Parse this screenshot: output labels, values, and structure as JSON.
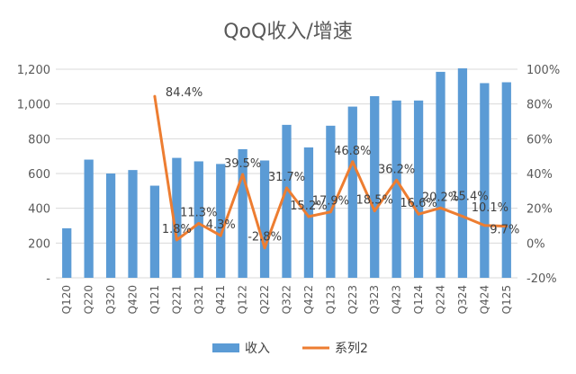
{
  "chart_data": {
    "type": "bar",
    "title": "QoQ收入/增速",
    "categories": [
      "Q120",
      "Q220",
      "Q320",
      "Q420",
      "Q121",
      "Q221",
      "Q321",
      "Q421",
      "Q122",
      "Q222",
      "Q322",
      "Q422",
      "Q123",
      "Q223",
      "Q323",
      "Q423",
      "Q124",
      "Q224",
      "Q324",
      "Q424",
      "Q125"
    ],
    "series": [
      {
        "name": "收入",
        "type": "bar",
        "axis": "left",
        "color": "#5b9bd5",
        "values": [
          285,
          680,
          600,
          620,
          530,
          690,
          670,
          655,
          740,
          675,
          880,
          750,
          875,
          985,
          1045,
          1020,
          1020,
          1185,
          1205,
          1120,
          1125
        ]
      },
      {
        "name": "系列2",
        "type": "line",
        "axis": "right",
        "color": "#ed7d31",
        "values": [
          null,
          null,
          null,
          null,
          84.4,
          1.8,
          11.3,
          4.3,
          39.5,
          -2.8,
          31.7,
          15.2,
          17.9,
          46.8,
          18.5,
          36.2,
          16.6,
          20.2,
          15.4,
          10.1,
          9.7
        ],
        "labels": [
          "",
          "",
          "",
          "",
          "84.4%",
          "1.8%",
          "11.3%",
          "4.3%",
          "39.5%",
          "-2.8%",
          "31.7%",
          "15.2%",
          "17.9%",
          "46.8%",
          "18.5%",
          "36.2%",
          "16.6%",
          "20.2%",
          "15.4%",
          "10.1%",
          "9.7%"
        ]
      }
    ],
    "y_left": {
      "min": 0,
      "max": 1200,
      "step": 200,
      "tick_labels": [
        "-",
        "200",
        "400",
        "600",
        "800",
        "1,000",
        "1,200"
      ]
    },
    "y_right": {
      "min": -20,
      "max": 100,
      "step": 20,
      "tick_labels": [
        "-20%",
        "0%",
        "20%",
        "40%",
        "60%",
        "80%",
        "100%"
      ]
    },
    "grid": true,
    "legend_position": "bottom"
  }
}
